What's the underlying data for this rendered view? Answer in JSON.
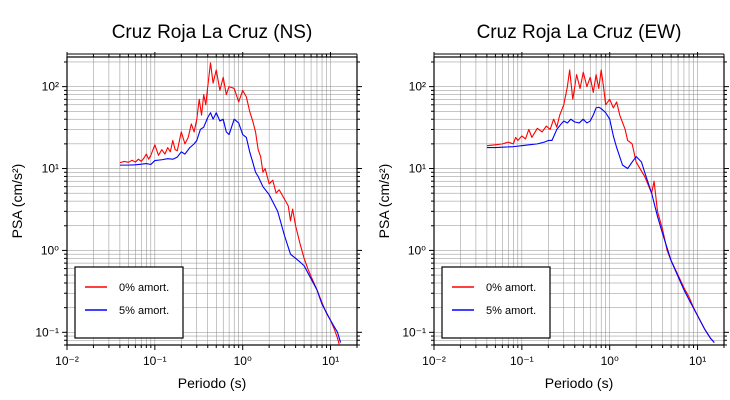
{
  "chart_data": [
    {
      "type": "line",
      "title": "Cruz Roja La Cruz (NS)",
      "xlabel": "Periodo (s)",
      "ylabel": "PSA (cm/s²)",
      "xscale": "log",
      "yscale": "log",
      "xlim": [
        0.01,
        20
      ],
      "ylim": [
        0.07,
        230
      ],
      "x_ticks": [
        "10⁻²",
        "10⁻¹",
        "10⁰",
        "10¹"
      ],
      "y_ticks": [
        "10⁻¹",
        "10⁰",
        "10¹",
        "10²"
      ],
      "grid": true,
      "legend_position": "bottom-left",
      "series": [
        {
          "name": "0% amort.",
          "color": "#ff0000",
          "points": [
            [
              0.04,
              11.8
            ],
            [
              0.045,
              12.2
            ],
            [
              0.05,
              11.9
            ],
            [
              0.055,
              12.6
            ],
            [
              0.06,
              12.0
            ],
            [
              0.065,
              13.0
            ],
            [
              0.07,
              12.2
            ],
            [
              0.075,
              13.4
            ],
            [
              0.08,
              15.0
            ],
            [
              0.085,
              13.0
            ],
            [
              0.09,
              14.5
            ],
            [
              0.1,
              19.5
            ],
            [
              0.11,
              14.5
            ],
            [
              0.12,
              17.0
            ],
            [
              0.13,
              15.0
            ],
            [
              0.14,
              18.0
            ],
            [
              0.15,
              16.0
            ],
            [
              0.16,
              22.0
            ],
            [
              0.17,
              17.0
            ],
            [
              0.18,
              16.5
            ],
            [
              0.2,
              28.0
            ],
            [
              0.22,
              20.0
            ],
            [
              0.24,
              24.0
            ],
            [
              0.26,
              35.0
            ],
            [
              0.28,
              28.0
            ],
            [
              0.3,
              40.0
            ],
            [
              0.32,
              70.0
            ],
            [
              0.34,
              45.0
            ],
            [
              0.36,
              80.0
            ],
            [
              0.38,
              60.0
            ],
            [
              0.4,
              100.0
            ],
            [
              0.43,
              195.0
            ],
            [
              0.46,
              110.0
            ],
            [
              0.5,
              160.0
            ],
            [
              0.55,
              90.0
            ],
            [
              0.6,
              130.0
            ],
            [
              0.65,
              80.0
            ],
            [
              0.7,
              100.0
            ],
            [
              0.8,
              95.0
            ],
            [
              0.9,
              65.0
            ],
            [
              1.0,
              90.0
            ],
            [
              1.1,
              75.0
            ],
            [
              1.2,
              50.0
            ],
            [
              1.3,
              38.0
            ],
            [
              1.4,
              28.0
            ],
            [
              1.5,
              17.0
            ],
            [
              1.6,
              14.0
            ],
            [
              1.7,
              9.0
            ],
            [
              1.8,
              10.0
            ],
            [
              2.0,
              6.5
            ],
            [
              2.2,
              7.2
            ],
            [
              2.4,
              5.0
            ],
            [
              2.6,
              5.5
            ],
            [
              3.0,
              4.2
            ],
            [
              3.3,
              3.5
            ],
            [
              3.5,
              2.3
            ],
            [
              3.7,
              3.2
            ],
            [
              4.0,
              2.0
            ],
            [
              4.5,
              1.2
            ],
            [
              5.0,
              0.8
            ],
            [
              5.5,
              0.6
            ],
            [
              6.0,
              0.48
            ],
            [
              7.0,
              0.33
            ],
            [
              8.0,
              0.23
            ],
            [
              9.0,
              0.17
            ],
            [
              10.0,
              0.14
            ],
            [
              11.0,
              0.11
            ],
            [
              12.0,
              0.085
            ],
            [
              12.6,
              0.07
            ]
          ]
        },
        {
          "name": "5% amort.",
          "color": "#0000ff",
          "points": [
            [
              0.04,
              11.0
            ],
            [
              0.05,
              11.0
            ],
            [
              0.06,
              11.1
            ],
            [
              0.07,
              11.3
            ],
            [
              0.08,
              11.5
            ],
            [
              0.09,
              11.2
            ],
            [
              0.1,
              12.5
            ],
            [
              0.12,
              12.8
            ],
            [
              0.14,
              13.2
            ],
            [
              0.16,
              13.0
            ],
            [
              0.18,
              13.8
            ],
            [
              0.2,
              16.0
            ],
            [
              0.22,
              15.0
            ],
            [
              0.25,
              18.0
            ],
            [
              0.28,
              20.0
            ],
            [
              0.3,
              22.0
            ],
            [
              0.33,
              30.0
            ],
            [
              0.36,
              32.0
            ],
            [
              0.4,
              42.0
            ],
            [
              0.43,
              48.0
            ],
            [
              0.46,
              40.0
            ],
            [
              0.5,
              48.0
            ],
            [
              0.55,
              38.0
            ],
            [
              0.6,
              40.0
            ],
            [
              0.65,
              28.0
            ],
            [
              0.7,
              26.0
            ],
            [
              0.8,
              40.0
            ],
            [
              0.9,
              36.0
            ],
            [
              1.0,
              26.0
            ],
            [
              1.1,
              24.0
            ],
            [
              1.2,
              16.0
            ],
            [
              1.3,
              12.0
            ],
            [
              1.4,
              9.0
            ],
            [
              1.5,
              8.0
            ],
            [
              1.7,
              6.0
            ],
            [
              2.0,
              4.8
            ],
            [
              2.5,
              3.0
            ],
            [
              3.0,
              1.5
            ],
            [
              3.5,
              0.9
            ],
            [
              4.0,
              0.8
            ],
            [
              4.5,
              0.72
            ],
            [
              5.0,
              0.65
            ],
            [
              6.0,
              0.45
            ],
            [
              7.0,
              0.33
            ],
            [
              8.0,
              0.22
            ],
            [
              10.0,
              0.14
            ],
            [
              12.0,
              0.1
            ],
            [
              13.0,
              0.075
            ]
          ]
        }
      ]
    },
    {
      "type": "line",
      "title": "Cruz Roja La Cruz (EW)",
      "xlabel": "Periodo (s)",
      "ylabel": "PSA (cm/s²)",
      "xscale": "log",
      "yscale": "log",
      "xlim": [
        0.01,
        20
      ],
      "ylim": [
        0.07,
        230
      ],
      "x_ticks": [
        "10⁻²",
        "10⁻¹",
        "10⁰",
        "10¹"
      ],
      "y_ticks": [
        "10⁻¹",
        "10⁰",
        "10¹",
        "10²"
      ],
      "grid": true,
      "legend_position": "bottom-left",
      "series": [
        {
          "name": "0% amort.",
          "color": "#ff0000",
          "points": [
            [
              0.04,
              19.0
            ],
            [
              0.05,
              19.5
            ],
            [
              0.06,
              20.0
            ],
            [
              0.07,
              21.0
            ],
            [
              0.08,
              20.0
            ],
            [
              0.085,
              24.0
            ],
            [
              0.09,
              22.0
            ],
            [
              0.1,
              25.0
            ],
            [
              0.11,
              23.0
            ],
            [
              0.12,
              30.0
            ],
            [
              0.13,
              24.0
            ],
            [
              0.15,
              31.0
            ],
            [
              0.17,
              28.0
            ],
            [
              0.19,
              33.0
            ],
            [
              0.21,
              30.0
            ],
            [
              0.23,
              40.0
            ],
            [
              0.25,
              32.0
            ],
            [
              0.27,
              45.0
            ],
            [
              0.3,
              60.0
            ],
            [
              0.33,
              100.0
            ],
            [
              0.35,
              160.0
            ],
            [
              0.38,
              70.0
            ],
            [
              0.42,
              140.0
            ],
            [
              0.46,
              95.0
            ],
            [
              0.5,
              150.0
            ],
            [
              0.55,
              100.0
            ],
            [
              0.6,
              130.0
            ],
            [
              0.65,
              85.0
            ],
            [
              0.7,
              140.0
            ],
            [
              0.75,
              95.0
            ],
            [
              0.8,
              160.0
            ],
            [
              0.85,
              100.0
            ],
            [
              0.9,
              60.0
            ],
            [
              1.0,
              70.0
            ],
            [
              1.1,
              55.0
            ],
            [
              1.2,
              65.0
            ],
            [
              1.3,
              45.0
            ],
            [
              1.5,
              30.0
            ],
            [
              1.6,
              22.0
            ],
            [
              1.8,
              20.0
            ],
            [
              2.0,
              12.0
            ],
            [
              2.5,
              8.0
            ],
            [
              3.0,
              5.0
            ],
            [
              3.2,
              7.0
            ],
            [
              3.5,
              3.0
            ],
            [
              4.0,
              1.8
            ],
            [
              4.5,
              1.0
            ],
            [
              5.0,
              0.75
            ],
            [
              6.0,
              0.5
            ],
            [
              7.0,
              0.35
            ],
            [
              8.0,
              0.27
            ],
            [
              9.0,
              0.2
            ],
            [
              10.0,
              0.16
            ],
            [
              12.0,
              0.11
            ],
            [
              14.0,
              0.085
            ],
            [
              15.5,
              0.075
            ]
          ]
        },
        {
          "name": "5% amort.",
          "color": "#0000ff",
          "points": [
            [
              0.04,
              18.0
            ],
            [
              0.05,
              18.0
            ],
            [
              0.06,
              18.2
            ],
            [
              0.08,
              18.5
            ],
            [
              0.1,
              19.0
            ],
            [
              0.12,
              19.5
            ],
            [
              0.15,
              20.0
            ],
            [
              0.18,
              21.0
            ],
            [
              0.2,
              22.0
            ],
            [
              0.22,
              22.0
            ],
            [
              0.25,
              30.0
            ],
            [
              0.28,
              35.0
            ],
            [
              0.3,
              38.0
            ],
            [
              0.33,
              36.0
            ],
            [
              0.36,
              40.0
            ],
            [
              0.4,
              37.0
            ],
            [
              0.45,
              36.0
            ],
            [
              0.5,
              40.0
            ],
            [
              0.55,
              36.0
            ],
            [
              0.6,
              38.0
            ],
            [
              0.65,
              45.0
            ],
            [
              0.7,
              55.0
            ],
            [
              0.75,
              56.0
            ],
            [
              0.8,
              54.0
            ],
            [
              0.9,
              48.0
            ],
            [
              1.0,
              40.0
            ],
            [
              1.1,
              25.0
            ],
            [
              1.2,
              18.0
            ],
            [
              1.4,
              11.0
            ],
            [
              1.6,
              10.0
            ],
            [
              1.8,
              12.0
            ],
            [
              2.0,
              14.0
            ],
            [
              2.3,
              12.0
            ],
            [
              2.5,
              9.0
            ],
            [
              3.0,
              5.0
            ],
            [
              3.5,
              2.6
            ],
            [
              4.0,
              1.6
            ],
            [
              5.0,
              0.75
            ],
            [
              6.0,
              0.48
            ],
            [
              7.0,
              0.33
            ],
            [
              8.0,
              0.25
            ],
            [
              10.0,
              0.16
            ],
            [
              12.0,
              0.11
            ],
            [
              14.0,
              0.085
            ],
            [
              15.5,
              0.075
            ]
          ]
        }
      ]
    }
  ]
}
